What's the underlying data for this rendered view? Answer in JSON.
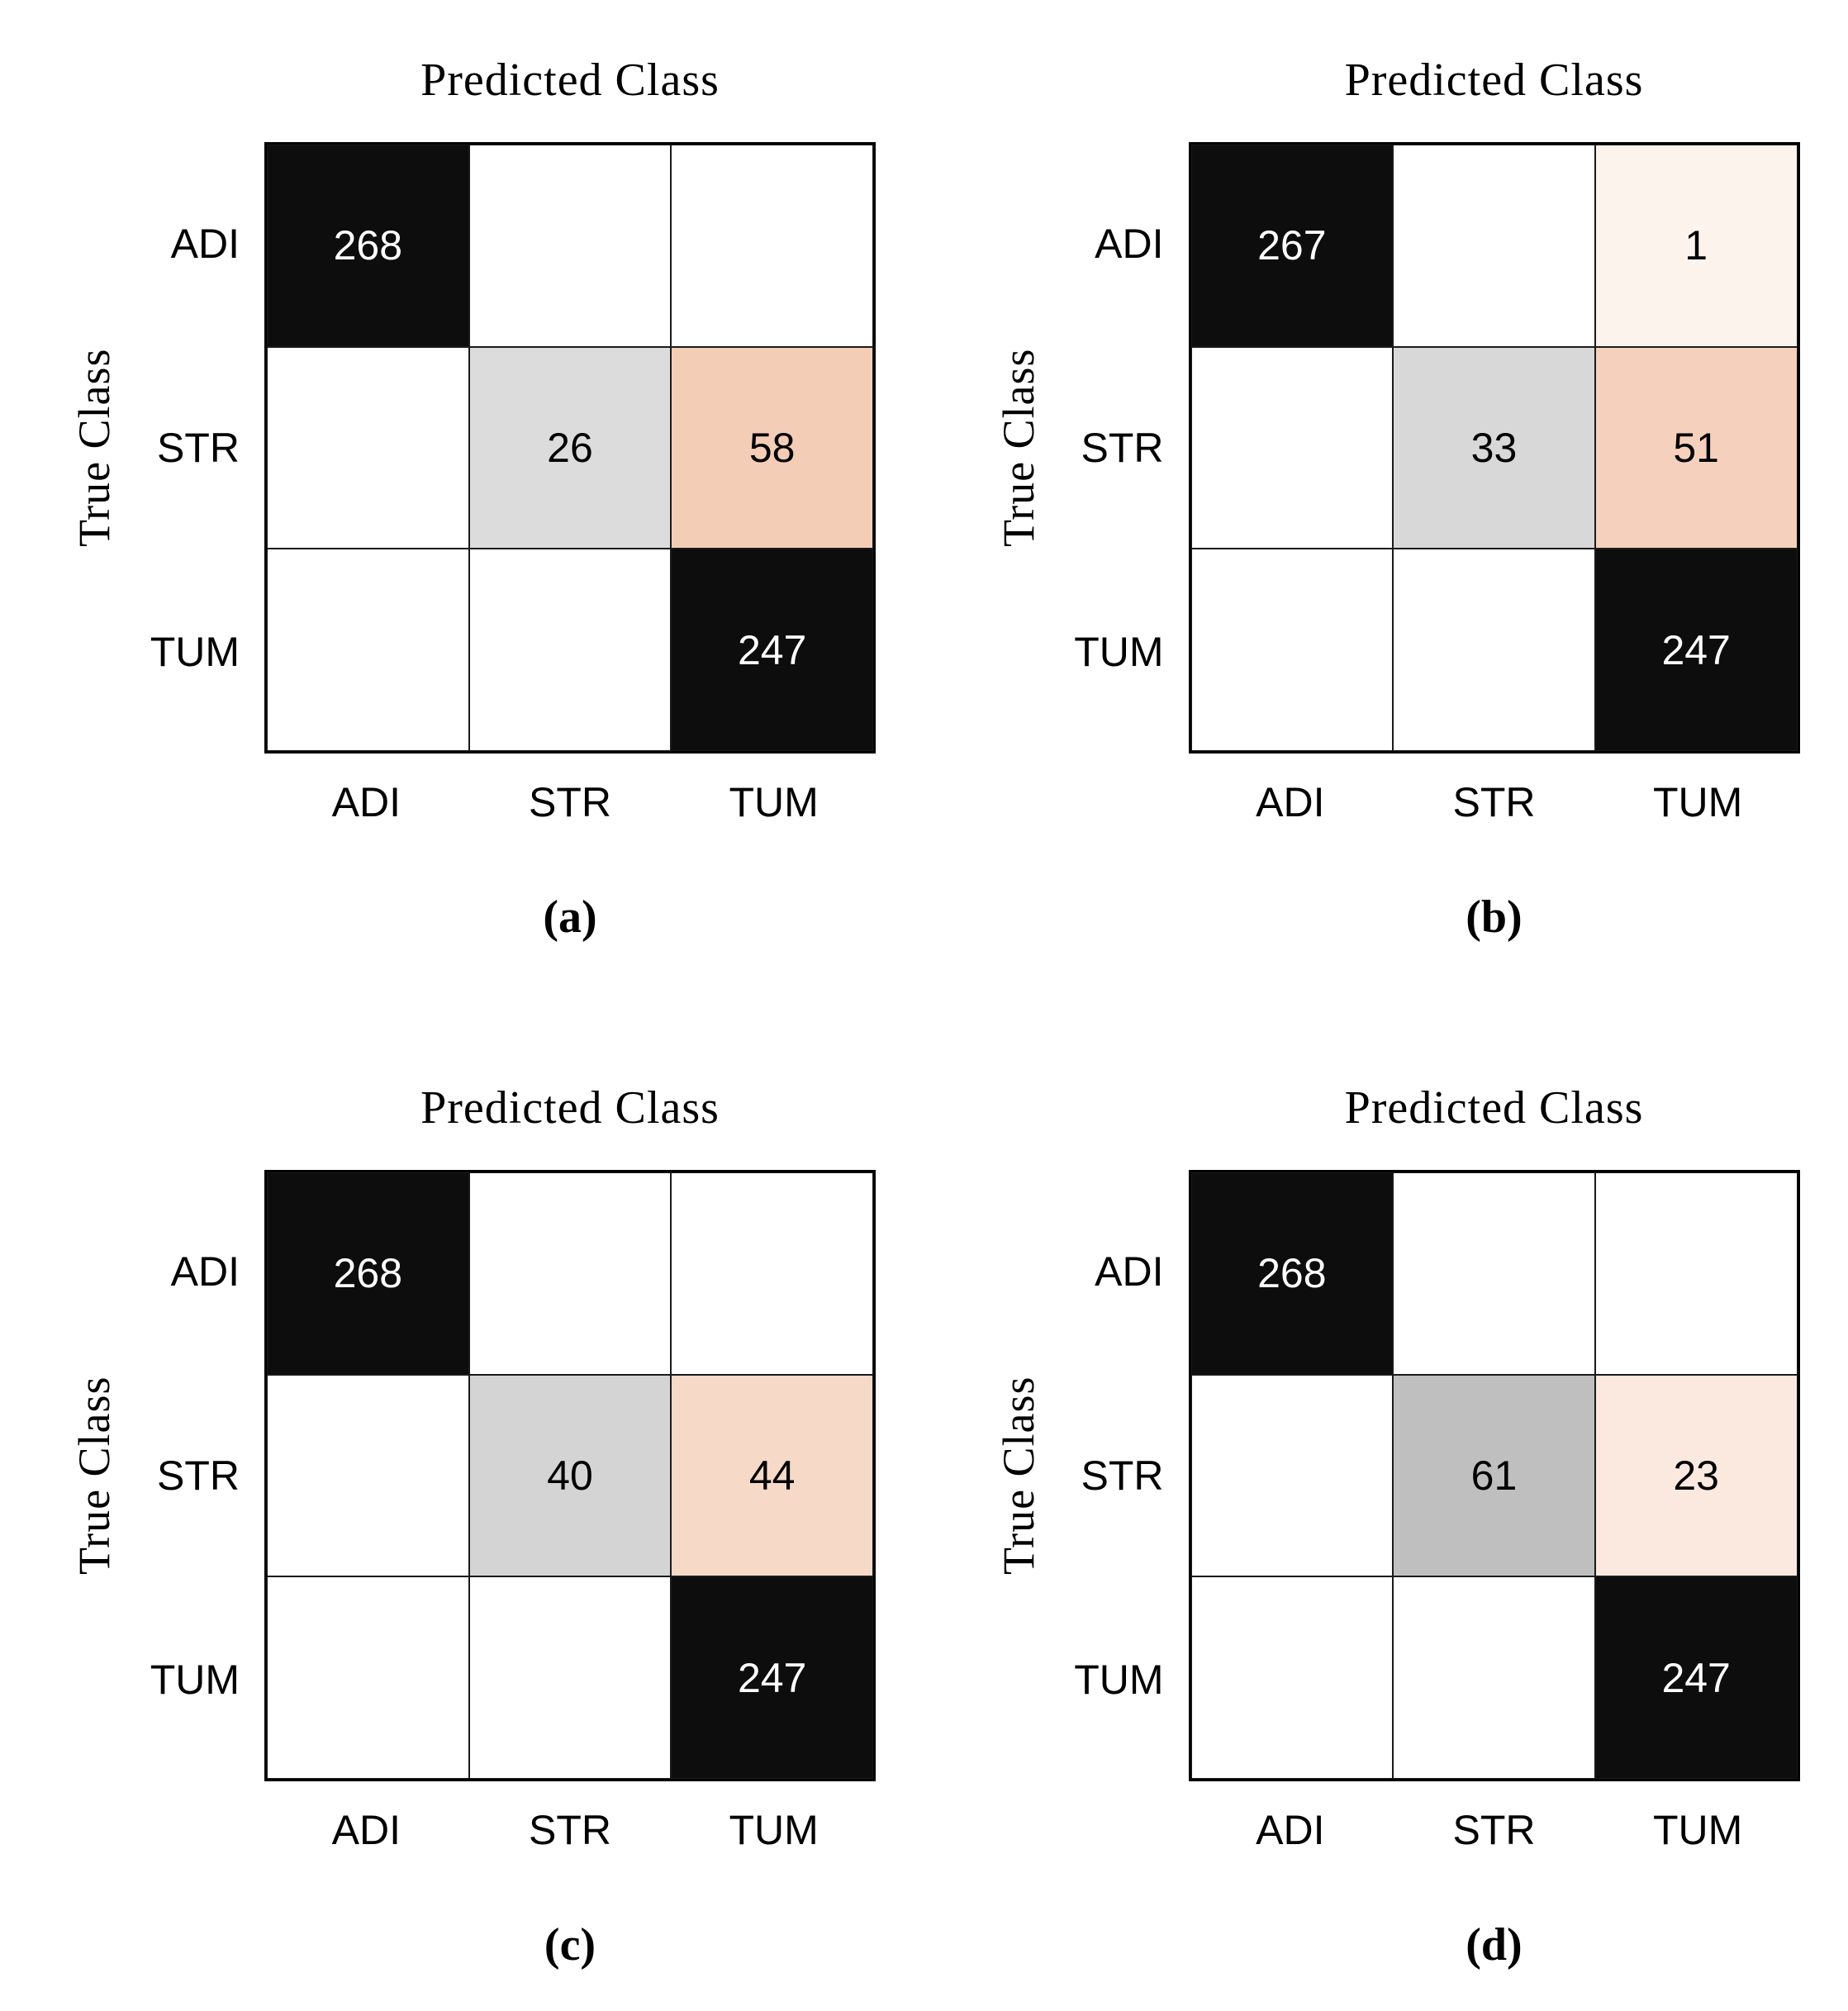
{
  "colors": {
    "diagonal_black": "#0d0d0d",
    "white_cell": "#ffffff",
    "gray_26": "#dcdcdc",
    "gray_33": "#d8d8d8",
    "gray_40": "#d4d4d4",
    "gray_61": "#bfbfbf",
    "salmon_58": "#f4cdb7",
    "salmon_51": "#f5d1bd",
    "salmon_44": "#f7d9c7",
    "salmon_23": "#fbe9df",
    "salmon_1": "#fdf3ed",
    "text_on_dark": "#ffffff",
    "text_on_light": "#000000"
  },
  "panels": [
    {
      "id": "a",
      "title": "Predicted Class",
      "ylabel": "True Class",
      "caption": "(a)",
      "row_labels": [
        "ADI",
        "STR",
        "TUM"
      ],
      "col_labels": [
        "ADI",
        "STR",
        "TUM"
      ],
      "cells": [
        {
          "v": "268",
          "bg": "#0d0d0d",
          "fg": "#ffffff"
        },
        {
          "v": "",
          "bg": "#ffffff",
          "fg": "#000000"
        },
        {
          "v": "",
          "bg": "#ffffff",
          "fg": "#000000"
        },
        {
          "v": "",
          "bg": "#ffffff",
          "fg": "#000000"
        },
        {
          "v": "26",
          "bg": "#dcdcdc",
          "fg": "#000000"
        },
        {
          "v": "58",
          "bg": "#f4cdb7",
          "fg": "#000000"
        },
        {
          "v": "",
          "bg": "#ffffff",
          "fg": "#000000"
        },
        {
          "v": "",
          "bg": "#ffffff",
          "fg": "#000000"
        },
        {
          "v": "247",
          "bg": "#0d0d0d",
          "fg": "#ffffff"
        }
      ]
    },
    {
      "id": "b",
      "title": "Predicted Class",
      "ylabel": "True Class",
      "caption": "(b)",
      "row_labels": [
        "ADI",
        "STR",
        "TUM"
      ],
      "col_labels": [
        "ADI",
        "STR",
        "TUM"
      ],
      "cells": [
        {
          "v": "267",
          "bg": "#0d0d0d",
          "fg": "#ffffff"
        },
        {
          "v": "",
          "bg": "#ffffff",
          "fg": "#000000"
        },
        {
          "v": "1",
          "bg": "#fdf3ed",
          "fg": "#000000"
        },
        {
          "v": "",
          "bg": "#ffffff",
          "fg": "#000000"
        },
        {
          "v": "33",
          "bg": "#d8d8d8",
          "fg": "#000000"
        },
        {
          "v": "51",
          "bg": "#f5d1bd",
          "fg": "#000000"
        },
        {
          "v": "",
          "bg": "#ffffff",
          "fg": "#000000"
        },
        {
          "v": "",
          "bg": "#ffffff",
          "fg": "#000000"
        },
        {
          "v": "247",
          "bg": "#0d0d0d",
          "fg": "#ffffff"
        }
      ]
    },
    {
      "id": "c",
      "title": "Predicted Class",
      "ylabel": "True Class",
      "caption": "(c)",
      "row_labels": [
        "ADI",
        "STR",
        "TUM"
      ],
      "col_labels": [
        "ADI",
        "STR",
        "TUM"
      ],
      "cells": [
        {
          "v": "268",
          "bg": "#0d0d0d",
          "fg": "#ffffff"
        },
        {
          "v": "",
          "bg": "#ffffff",
          "fg": "#000000"
        },
        {
          "v": "",
          "bg": "#ffffff",
          "fg": "#000000"
        },
        {
          "v": "",
          "bg": "#ffffff",
          "fg": "#000000"
        },
        {
          "v": "40",
          "bg": "#d4d4d4",
          "fg": "#000000"
        },
        {
          "v": "44",
          "bg": "#f7d9c7",
          "fg": "#000000"
        },
        {
          "v": "",
          "bg": "#ffffff",
          "fg": "#000000"
        },
        {
          "v": "",
          "bg": "#ffffff",
          "fg": "#000000"
        },
        {
          "v": "247",
          "bg": "#0d0d0d",
          "fg": "#ffffff"
        }
      ]
    },
    {
      "id": "d",
      "title": "Predicted Class",
      "ylabel": "True Class",
      "caption": "(d)",
      "row_labels": [
        "ADI",
        "STR",
        "TUM"
      ],
      "col_labels": [
        "ADI",
        "STR",
        "TUM"
      ],
      "cells": [
        {
          "v": "268",
          "bg": "#0d0d0d",
          "fg": "#ffffff"
        },
        {
          "v": "",
          "bg": "#ffffff",
          "fg": "#000000"
        },
        {
          "v": "",
          "bg": "#ffffff",
          "fg": "#000000"
        },
        {
          "v": "",
          "bg": "#ffffff",
          "fg": "#000000"
        },
        {
          "v": "61",
          "bg": "#bfbfbf",
          "fg": "#000000"
        },
        {
          "v": "23",
          "bg": "#fbe9df",
          "fg": "#000000"
        },
        {
          "v": "",
          "bg": "#ffffff",
          "fg": "#000000"
        },
        {
          "v": "",
          "bg": "#ffffff",
          "fg": "#000000"
        },
        {
          "v": "247",
          "bg": "#0d0d0d",
          "fg": "#ffffff"
        }
      ]
    }
  ],
  "chart_data": [
    {
      "type": "heatmap",
      "panel": "(a)",
      "title": "Predicted Class",
      "xlabel": "Predicted Class",
      "ylabel": "True Class",
      "x_categories": [
        "ADI",
        "STR",
        "TUM"
      ],
      "y_categories": [
        "ADI",
        "STR",
        "TUM"
      ],
      "matrix": [
        [
          268,
          null,
          null
        ],
        [
          null,
          26,
          58
        ],
        [
          null,
          null,
          247
        ]
      ],
      "legend": "none",
      "grid": "on",
      "note": "confusion matrix; blank cells are zero; diagonal cells black, off-diagonal errors salmon, STR-STR gray"
    },
    {
      "type": "heatmap",
      "panel": "(b)",
      "title": "Predicted Class",
      "xlabel": "Predicted Class",
      "ylabel": "True Class",
      "x_categories": [
        "ADI",
        "STR",
        "TUM"
      ],
      "y_categories": [
        "ADI",
        "STR",
        "TUM"
      ],
      "matrix": [
        [
          267,
          null,
          1
        ],
        [
          null,
          33,
          51
        ],
        [
          null,
          null,
          247
        ]
      ],
      "legend": "none",
      "grid": "on",
      "note": "confusion matrix; blank cells are zero"
    },
    {
      "type": "heatmap",
      "panel": "(c)",
      "title": "Predicted Class",
      "xlabel": "Predicted Class",
      "ylabel": "True Class",
      "x_categories": [
        "ADI",
        "STR",
        "TUM"
      ],
      "y_categories": [
        "ADI",
        "STR",
        "TUM"
      ],
      "matrix": [
        [
          268,
          null,
          null
        ],
        [
          null,
          40,
          44
        ],
        [
          null,
          null,
          247
        ]
      ],
      "legend": "none",
      "grid": "on",
      "note": "confusion matrix; blank cells are zero"
    },
    {
      "type": "heatmap",
      "panel": "(d)",
      "title": "Predicted Class",
      "xlabel": "Predicted Class",
      "ylabel": "True Class",
      "x_categories": [
        "ADI",
        "STR",
        "TUM"
      ],
      "y_categories": [
        "ADI",
        "STR",
        "TUM"
      ],
      "matrix": [
        [
          268,
          null,
          null
        ],
        [
          null,
          61,
          23
        ],
        [
          null,
          null,
          247
        ]
      ],
      "legend": "none",
      "grid": "on",
      "note": "confusion matrix; blank cells are zero; STR-STR cell darker gray than other panels"
    }
  ]
}
